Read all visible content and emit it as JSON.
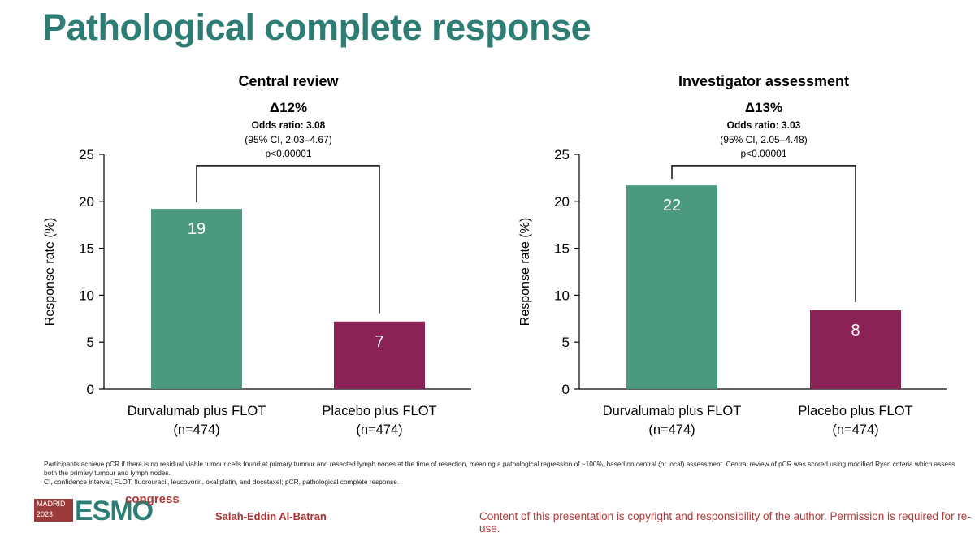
{
  "slide_title": "Pathological complete response",
  "colors": {
    "green": "#4b9a80",
    "maroon": "#8b2256",
    "title": "#2e7d74"
  },
  "chart_data": [
    {
      "type": "bar",
      "title": "Central review",
      "delta": "Δ12%",
      "odds_ratio": "Odds ratio: 3.08",
      "ci": "(95% CI, 2.03–4.67)",
      "p_value": "p<0.00001",
      "ylabel": "Response rate (%)",
      "ylim": [
        0,
        25
      ],
      "yticks": [
        0,
        5,
        10,
        15,
        20,
        25
      ],
      "categories": [
        "Durvalumab plus FLOT",
        "Placebo plus FLOT"
      ],
      "category_n": [
        "(n=474)",
        "(n=474)"
      ],
      "values": [
        19.2,
        7.2
      ],
      "value_labels": [
        "19",
        "7"
      ],
      "bar_colors": [
        "#4b9a80",
        "#8b2256"
      ],
      "bracket_level": 23.8
    },
    {
      "type": "bar",
      "title": "Investigator assessment",
      "delta": "Δ13%",
      "odds_ratio": "Odds ratio: 3.03",
      "ci": "(95% CI, 2.05–4.48)",
      "p_value": "p<0.00001",
      "ylabel": "Response rate (%)",
      "ylim": [
        0,
        25
      ],
      "yticks": [
        0,
        5,
        10,
        15,
        20,
        25
      ],
      "categories": [
        "Durvalumab plus FLOT",
        "Placebo plus FLOT"
      ],
      "category_n": [
        "(n=474)",
        "(n=474)"
      ],
      "values": [
        21.7,
        8.4
      ],
      "value_labels": [
        "22",
        "8"
      ],
      "bar_colors": [
        "#4b9a80",
        "#8b2256"
      ],
      "bracket_level": 23.8
    }
  ],
  "footnote": {
    "line1": "Participants achieve pCR if there is no residual viable tumour cells found at primary tumour and resected lymph nodes at the time of resection, meaning a pathological regression of ~100%, based on central (or local) assessment. Central review of pCR was scored using modified Ryan criteria which assess both the primary tumour and lymph nodes.",
    "line2": "CI, confidence interval; FLOT, fluorouracil, leucovorin, oxaliplatin, and docetaxel; pCR, pathological complete response."
  },
  "footer": {
    "logo_city": "MADRID",
    "logo_year": "2023",
    "logo_esmo": "ESMO",
    "logo_congress": "congress",
    "author": "Salah-Eddin Al-Batran",
    "copyright": "Content of this presentation is copyright and responsibility of the author. Permission is required for re-use."
  }
}
